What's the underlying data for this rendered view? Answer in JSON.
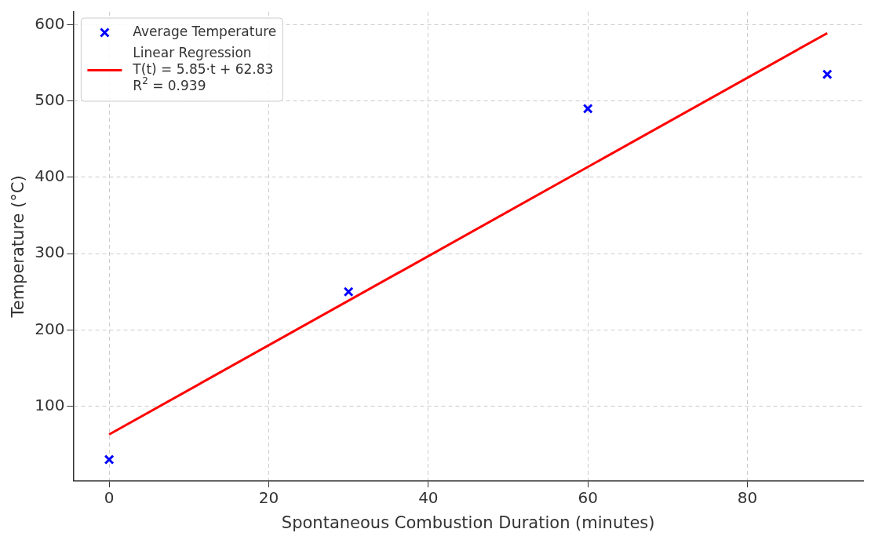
{
  "chart_data": {
    "type": "scatter",
    "xlabel": "Spontaneous Combustion Duration (minutes)",
    "ylabel": "Temperature (°C)",
    "series": [
      {
        "name": "Average Temperature",
        "color": "#0000ff",
        "marker": "cross",
        "x": [
          0,
          30,
          60,
          90
        ],
        "values": [
          30,
          250,
          490,
          535
        ]
      },
      {
        "name": "Linear Regression\nT(t) = 5.85·t + 62.83\nR$^{2}$ = 0.939",
        "type": "line",
        "color": "#ff0000",
        "marker": "none",
        "x": [
          0,
          90
        ],
        "values": [
          63,
          589
        ]
      }
    ],
    "xlim": [
      -4.5,
      94.5
    ],
    "xticks": [
      0,
      20,
      40,
      60,
      80
    ],
    "ylim": [
      2,
      617
    ],
    "yticks": [
      100,
      200,
      300,
      400,
      500,
      600
    ],
    "grid": true,
    "legend": "top left"
  }
}
